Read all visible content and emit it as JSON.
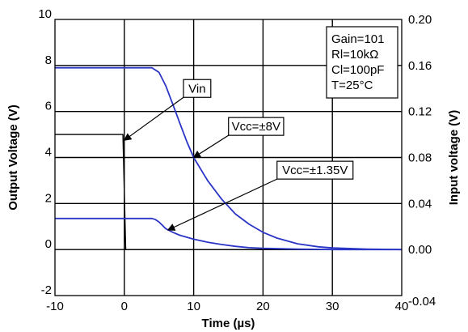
{
  "chart_data": {
    "type": "line",
    "title": "",
    "xlabel": "Time (µs)",
    "ylabel": "Output Voltage (V)",
    "y2label": "Input voltage (V)",
    "xlim": [
      -10,
      40
    ],
    "ylim": [
      -2,
      10
    ],
    "y2lim": [
      -0.04,
      0.2
    ],
    "grid": true,
    "x_ticks": [
      -10,
      0,
      10,
      20,
      30,
      40
    ],
    "x_tick_labels": [
      "-10",
      "0",
      "10",
      "20",
      "30",
      "40"
    ],
    "y_ticks": [
      -2,
      0,
      2,
      4,
      6,
      8,
      10
    ],
    "y_tick_labels": [
      "-2",
      "0",
      "2",
      "4",
      "6",
      "8",
      "10"
    ],
    "y2_ticks": [
      -0.04,
      0,
      0.04,
      0.08,
      0.12,
      0.16,
      0.2
    ],
    "y2_tick_labels": [
      "-0.04",
      "0.00",
      "0.04",
      "0.08",
      "0.12",
      "0.16",
      "0.20"
    ],
    "conditions_box": [
      "Gain=101",
      "Rl=10kΩ",
      "Cl=100pF",
      "T=25°C"
    ],
    "series": [
      {
        "name": "Vin",
        "axis": "right",
        "color": "#000000",
        "x": [
          -10,
          -0.2,
          0,
          0.2,
          40
        ],
        "y": [
          0.1,
          0.1,
          0.05,
          0.0,
          0.0
        ]
      },
      {
        "name": "Vcc=±8V",
        "axis": "left",
        "color": "#2b35c6",
        "x": [
          -10,
          0,
          4,
          5,
          6,
          7,
          8,
          9,
          10,
          12,
          14,
          16,
          18,
          20,
          22,
          25,
          28,
          30,
          35,
          40
        ],
        "y": [
          7.9,
          7.9,
          7.9,
          7.7,
          7.1,
          6.3,
          5.5,
          4.7,
          4.0,
          3.0,
          2.2,
          1.55,
          1.1,
          0.75,
          0.5,
          0.25,
          0.12,
          0.07,
          0.02,
          0.0
        ]
      },
      {
        "name": "Vcc=±1.35V",
        "axis": "left",
        "color": "#2b35c6",
        "x": [
          -10,
          0,
          4,
          4.5,
          5,
          5.5,
          6,
          7,
          8,
          10,
          12,
          14,
          16,
          18,
          20,
          25,
          30,
          40
        ],
        "y": [
          1.35,
          1.35,
          1.35,
          1.3,
          1.2,
          1.05,
          0.9,
          0.75,
          0.62,
          0.45,
          0.32,
          0.22,
          0.14,
          0.08,
          0.05,
          0.02,
          0.0,
          0.0
        ]
      }
    ],
    "annotations": [
      {
        "text": "Vin",
        "target_x": 0,
        "target_y": 4.75,
        "label_x": 10.5,
        "label_y": 7.0
      },
      {
        "text": "Vcc=±8V",
        "target_x": 10,
        "target_y": 4.0,
        "label_x": 19,
        "label_y": 5.35
      },
      {
        "text": "Vcc=±1.35V",
        "target_x": 6.3,
        "target_y": 0.85,
        "label_x": 27.5,
        "label_y": 3.45
      }
    ]
  }
}
